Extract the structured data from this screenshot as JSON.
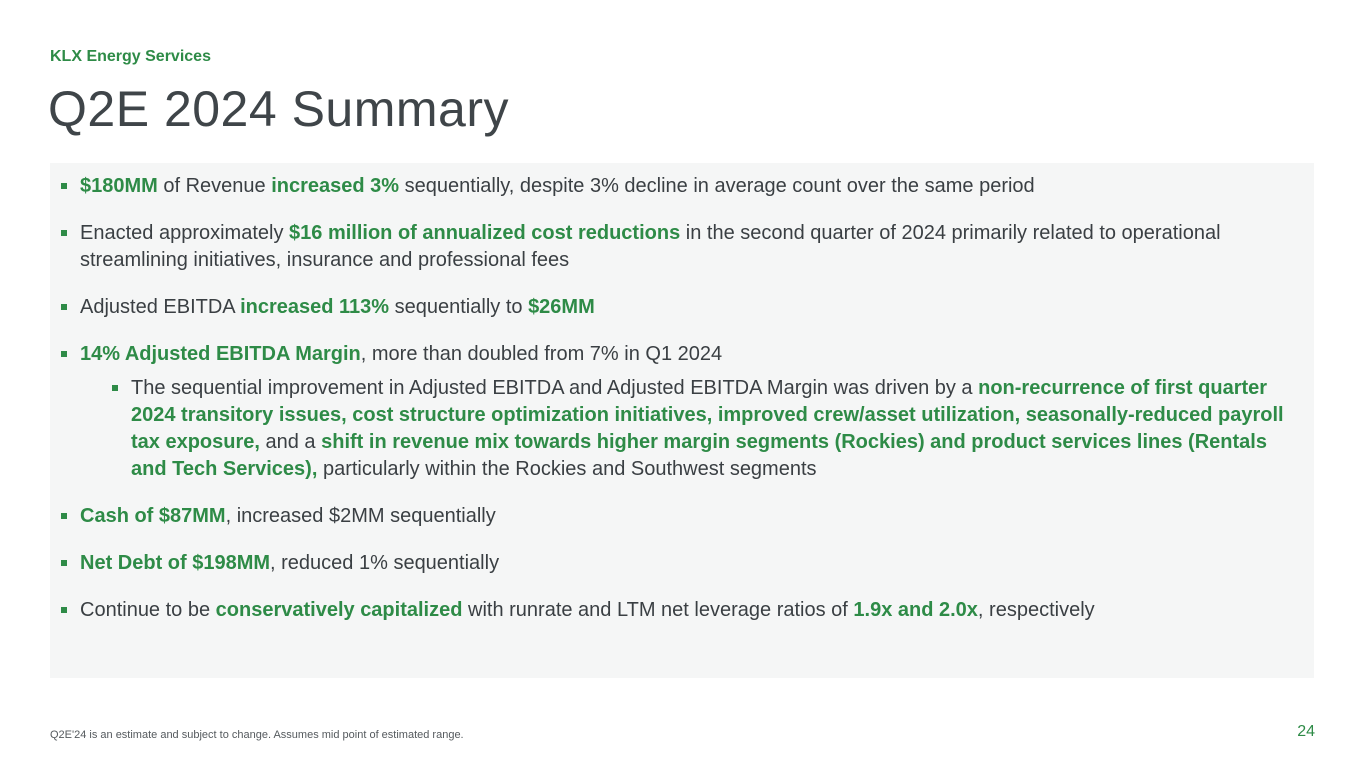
{
  "header": {
    "company": "KLX Energy Services",
    "title": "Q2E 2024 Summary"
  },
  "bullets": [
    {
      "segments": [
        {
          "text": "$180MM",
          "hl": true
        },
        {
          "text": " of Revenue ",
          "hl": false
        },
        {
          "text": "increased 3%",
          "hl": true
        },
        {
          "text": " sequentially, despite 3% decline in average count over the same period",
          "hl": false
        }
      ]
    },
    {
      "segments": [
        {
          "text": "Enacted approximately ",
          "hl": false
        },
        {
          "text": "$16 million of annualized cost reductions",
          "hl": true
        },
        {
          "text": " in the second quarter of 2024 primarily related to operational streamlining initiatives, insurance and professional fees",
          "hl": false
        }
      ]
    },
    {
      "segments": [
        {
          "text": "Adjusted EBITDA ",
          "hl": false
        },
        {
          "text": "increased 113%",
          "hl": true
        },
        {
          "text": " sequentially to ",
          "hl": false
        },
        {
          "text": "$26MM",
          "hl": true
        }
      ]
    },
    {
      "segments": [
        {
          "text": "14% Adjusted EBITDA Margin",
          "hl": true
        },
        {
          "text": ", more than doubled from 7% in Q1 2024",
          "hl": false
        }
      ]
    },
    {
      "segments": [
        {
          "text": "The sequential improvement in Adjusted EBITDA and Adjusted EBITDA Margin was driven by a ",
          "hl": false
        },
        {
          "text": "non-recurrence of first quarter 2024 transitory issues, cost structure optimization initiatives, improved crew/asset utilization, seasonally-reduced payroll tax exposure,",
          "hl": true
        },
        {
          "text": " and a ",
          "hl": false
        },
        {
          "text": "shift in revenue mix towards higher margin segments (Rockies) and product services lines (Rentals and Tech Services),",
          "hl": true
        },
        {
          "text": " particularly within the Rockies and Southwest segments",
          "hl": false
        }
      ]
    },
    {
      "segments": [
        {
          "text": "Cash of $87MM",
          "hl": true
        },
        {
          "text": ", increased $2MM sequentially",
          "hl": false
        }
      ]
    },
    {
      "segments": [
        {
          "text": "Net Debt of $198MM",
          "hl": true
        },
        {
          "text": ", reduced 1% sequentially",
          "hl": false
        }
      ]
    },
    {
      "segments": [
        {
          "text": "Continue to be ",
          "hl": false
        },
        {
          "text": "conservatively capitalized",
          "hl": true
        },
        {
          "text": " with runrate and LTM net leverage ratios of ",
          "hl": false
        },
        {
          "text": "1.9x and 2.0x",
          "hl": true
        },
        {
          "text": ", respectively",
          "hl": false
        }
      ]
    }
  ],
  "footer": {
    "note": "Q2E'24 is an estimate and subject to change. Assumes mid point of estimated range.",
    "page": "24"
  },
  "colors": {
    "accent": "#2e8b47",
    "text": "#3a3f43",
    "panel": "#f5f6f6"
  }
}
